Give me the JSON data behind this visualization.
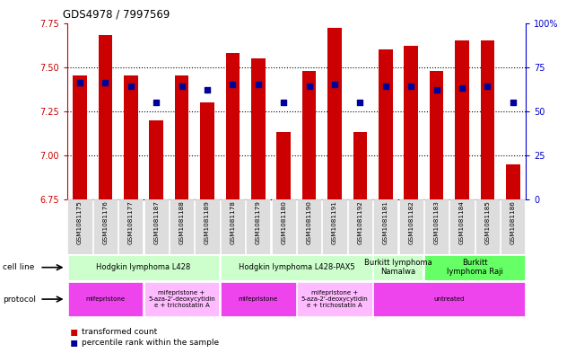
{
  "title": "GDS4978 / 7997569",
  "samples": [
    "GSM1081175",
    "GSM1081176",
    "GSM1081177",
    "GSM1081187",
    "GSM1081188",
    "GSM1081189",
    "GSM1081178",
    "GSM1081179",
    "GSM1081180",
    "GSM1081190",
    "GSM1081191",
    "GSM1081192",
    "GSM1081181",
    "GSM1081182",
    "GSM1081183",
    "GSM1081184",
    "GSM1081185",
    "GSM1081186"
  ],
  "transformed_count": [
    7.45,
    7.68,
    7.45,
    7.2,
    7.45,
    7.3,
    7.58,
    7.55,
    7.13,
    7.48,
    7.72,
    7.13,
    7.6,
    7.62,
    7.48,
    7.65,
    7.65,
    6.95
  ],
  "percentile_rank": [
    66,
    66,
    64,
    55,
    64,
    62,
    65,
    65,
    55,
    64,
    65,
    55,
    64,
    64,
    62,
    63,
    64,
    55
  ],
  "ylim_left": [
    6.75,
    7.75
  ],
  "ylim_right": [
    0,
    100
  ],
  "yticks_left": [
    6.75,
    7.0,
    7.25,
    7.5,
    7.75
  ],
  "yticks_right": [
    0,
    25,
    50,
    75,
    100
  ],
  "ytick_labels_right": [
    "0",
    "25",
    "50",
    "75",
    "100%"
  ],
  "bar_color": "#cc0000",
  "dot_color": "#000099",
  "bar_bottom": 6.75,
  "cell_line_groups": [
    {
      "label": "Hodgkin lymphoma L428",
      "start": 0,
      "end": 6,
      "color": "#ccffcc"
    },
    {
      "label": "Hodgkin lymphoma L428-PAX5",
      "start": 6,
      "end": 12,
      "color": "#ccffcc"
    },
    {
      "label": "Burkitt lymphoma\nNamalwa",
      "start": 12,
      "end": 14,
      "color": "#ccffcc"
    },
    {
      "label": "Burkitt\nlymphoma Raji",
      "start": 14,
      "end": 18,
      "color": "#66ff66"
    }
  ],
  "protocol_groups": [
    {
      "label": "mifepristone",
      "start": 0,
      "end": 3,
      "color": "#ee44ee"
    },
    {
      "label": "mifepristone +\n5-aza-2'-deoxycytidin\ne + trichostatin A",
      "start": 3,
      "end": 6,
      "color": "#ffbbff"
    },
    {
      "label": "mifepristone",
      "start": 6,
      "end": 9,
      "color": "#ee44ee"
    },
    {
      "label": "mifepristone +\n5-aza-2'-deoxycytidin\ne + trichostatin A",
      "start": 9,
      "end": 12,
      "color": "#ffbbff"
    },
    {
      "label": "untreated",
      "start": 12,
      "end": 18,
      "color": "#ee44ee"
    }
  ],
  "background_color": "#ffffff",
  "left_axis_color": "#cc0000",
  "right_axis_color": "#0000cc",
  "sample_bg_color": "#dddddd"
}
